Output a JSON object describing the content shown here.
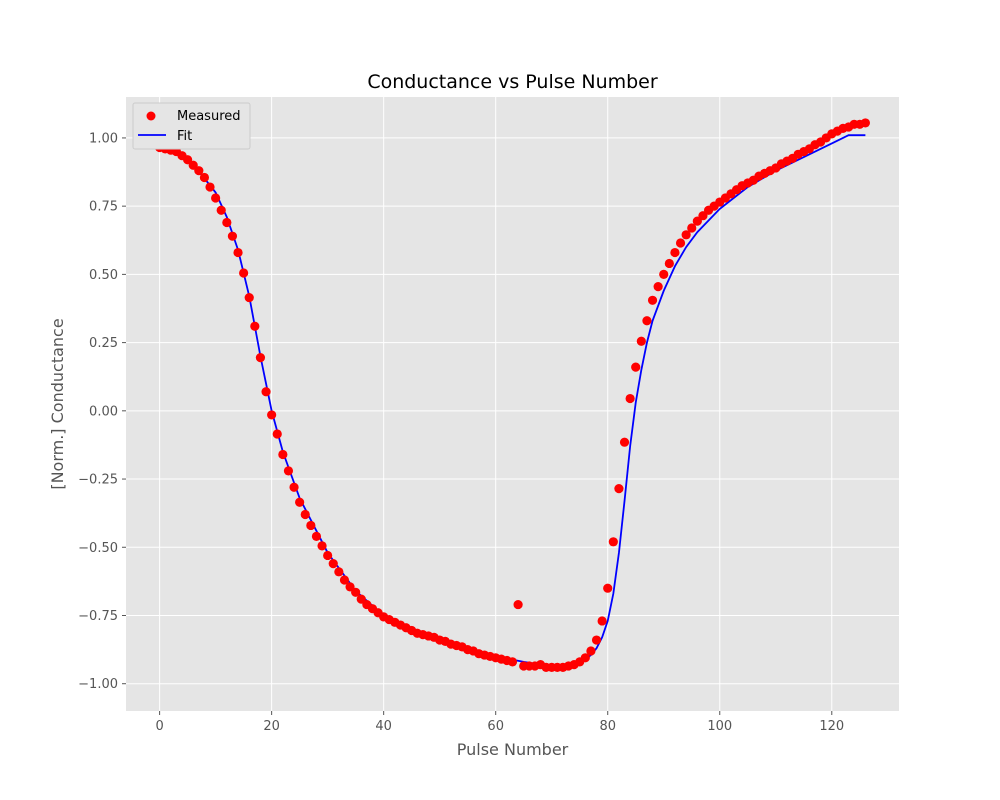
{
  "chart_data": {
    "type": "scatter",
    "title": "Conductance vs Pulse Number",
    "xlabel": "Pulse Number",
    "ylabel": "[Norm.] Conductance",
    "xlim": [
      -6,
      132
    ],
    "ylim": [
      -1.1,
      1.15
    ],
    "xticks": [
      "0",
      "20",
      "40",
      "60",
      "80",
      "100",
      "120"
    ],
    "xtick_values": [
      0,
      20,
      40,
      60,
      80,
      100,
      120
    ],
    "yticks": [
      "−1.00",
      "−0.75",
      "−0.50",
      "−0.25",
      "0.00",
      "0.25",
      "0.50",
      "0.75",
      "1.00"
    ],
    "ytick_values": [
      -1.0,
      -0.75,
      -0.5,
      -0.25,
      0.0,
      0.25,
      0.5,
      0.75,
      1.0
    ],
    "grid": true,
    "legend_position": "top-left",
    "series": [
      {
        "name": "Measured",
        "kind": "scatter",
        "color": "#ff0000",
        "x": [
          0,
          1,
          2,
          3,
          4,
          5,
          6,
          7,
          8,
          9,
          10,
          11,
          12,
          13,
          14,
          15,
          16,
          17,
          18,
          19,
          20,
          21,
          22,
          23,
          24,
          25,
          26,
          27,
          28,
          29,
          30,
          31,
          32,
          33,
          34,
          35,
          36,
          37,
          38,
          39,
          40,
          41,
          42,
          43,
          44,
          45,
          46,
          47,
          48,
          49,
          50,
          51,
          52,
          53,
          54,
          55,
          56,
          57,
          58,
          59,
          60,
          61,
          62,
          63,
          64,
          65,
          66,
          67,
          68,
          69,
          70,
          71,
          72,
          73,
          74,
          75,
          76,
          77,
          78,
          79,
          80,
          81,
          82,
          83,
          84,
          85,
          86,
          87,
          88,
          89,
          90,
          91,
          92,
          93,
          94,
          95,
          96,
          97,
          98,
          99,
          100,
          101,
          102,
          103,
          104,
          105,
          106,
          107,
          108,
          109,
          110,
          111,
          112,
          113,
          114,
          115,
          116,
          117,
          118,
          119,
          120,
          121,
          122,
          123,
          124,
          125,
          126
        ],
        "y": [
          0.965,
          0.96,
          0.955,
          0.95,
          0.935,
          0.92,
          0.9,
          0.88,
          0.855,
          0.82,
          0.78,
          0.735,
          0.69,
          0.64,
          0.58,
          0.505,
          0.415,
          0.31,
          0.195,
          0.07,
          -0.015,
          -0.085,
          -0.16,
          -0.22,
          -0.28,
          -0.335,
          -0.38,
          -0.42,
          -0.46,
          -0.495,
          -0.53,
          -0.56,
          -0.59,
          -0.62,
          -0.645,
          -0.665,
          -0.69,
          -0.71,
          -0.725,
          -0.74,
          -0.755,
          -0.765,
          -0.775,
          -0.785,
          -0.795,
          -0.805,
          -0.815,
          -0.82,
          -0.825,
          -0.83,
          -0.84,
          -0.845,
          -0.855,
          -0.86,
          -0.865,
          -0.875,
          -0.88,
          -0.89,
          -0.895,
          -0.9,
          -0.905,
          -0.91,
          -0.915,
          -0.92,
          -0.71,
          -0.935,
          -0.935,
          -0.935,
          -0.93,
          -0.94,
          -0.94,
          -0.94,
          -0.94,
          -0.935,
          -0.93,
          -0.92,
          -0.905,
          -0.88,
          -0.84,
          -0.77,
          -0.65,
          -0.48,
          -0.285,
          -0.115,
          0.045,
          0.16,
          0.255,
          0.33,
          0.405,
          0.455,
          0.5,
          0.54,
          0.58,
          0.615,
          0.645,
          0.67,
          0.695,
          0.715,
          0.735,
          0.75,
          0.765,
          0.78,
          0.795,
          0.81,
          0.825,
          0.835,
          0.845,
          0.86,
          0.87,
          0.88,
          0.89,
          0.905,
          0.915,
          0.925,
          0.94,
          0.95,
          0.96,
          0.975,
          0.985,
          1.0,
          1.015,
          1.025,
          1.035,
          1.04,
          1.05,
          1.05,
          1.055
        ]
      },
      {
        "name": "Fit",
        "kind": "line",
        "color": "#0000ff",
        "x": [
          0,
          5,
          10,
          12,
          14,
          16,
          18,
          20,
          22,
          25,
          30,
          35,
          40,
          45,
          50,
          55,
          60,
          65,
          68,
          70,
          72,
          74,
          76,
          77,
          78,
          79,
          80,
          81,
          82,
          83,
          84,
          85,
          86,
          87,
          88,
          90,
          92,
          94,
          96,
          100,
          105,
          110,
          115,
          120,
          122,
          123,
          124,
          125,
          126
        ],
        "y": [
          0.965,
          0.93,
          0.8,
          0.71,
          0.59,
          0.42,
          0.2,
          0.0,
          -0.15,
          -0.32,
          -0.52,
          -0.66,
          -0.75,
          -0.8,
          -0.84,
          -0.875,
          -0.9,
          -0.92,
          -0.93,
          -0.935,
          -0.93,
          -0.925,
          -0.91,
          -0.895,
          -0.87,
          -0.83,
          -0.77,
          -0.67,
          -0.52,
          -0.33,
          -0.13,
          0.03,
          0.15,
          0.25,
          0.33,
          0.44,
          0.53,
          0.6,
          0.655,
          0.74,
          0.82,
          0.88,
          0.93,
          0.98,
          1.0,
          1.01,
          1.01,
          1.01,
          1.01
        ]
      }
    ]
  }
}
